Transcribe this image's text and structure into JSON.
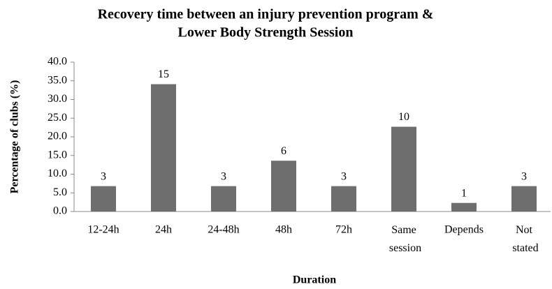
{
  "chart_data": {
    "type": "bar",
    "title": "Recovery time between an injury prevention program & Lower Body Strength Session",
    "title_lines": [
      "Recovery time between an injury prevention program &",
      "Lower Body Strength Session"
    ],
    "xlabel": "Duration",
    "ylabel": "Percentage of clubs (%)",
    "categories": [
      "12-24h",
      "24h",
      "24-48h",
      "48h",
      "72h",
      "Same session",
      "Depends",
      "Not stated"
    ],
    "values": [
      6.8,
      34.1,
      6.8,
      13.6,
      6.8,
      22.7,
      2.3,
      6.8
    ],
    "counts": [
      3,
      15,
      3,
      6,
      3,
      10,
      1,
      3
    ],
    "color": "#6e6e6e",
    "ylim": [
      0,
      40
    ],
    "yticks": [
      {
        "value": 0,
        "label": "0.0"
      },
      {
        "value": 5,
        "label": "5.0"
      },
      {
        "value": 10,
        "label": "10.0"
      },
      {
        "value": 15,
        "label": "15.0"
      },
      {
        "value": 20,
        "label": "20.0"
      },
      {
        "value": 25,
        "label": "25.0"
      },
      {
        "value": 30,
        "label": "30.0"
      },
      {
        "value": 35,
        "label": "35.0"
      },
      {
        "value": 40,
        "label": "40.0"
      }
    ],
    "grid": false
  }
}
